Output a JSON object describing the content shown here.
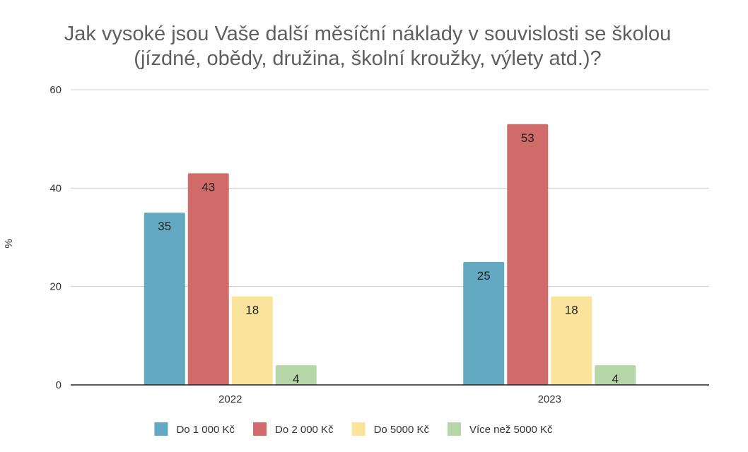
{
  "chart_data": {
    "type": "bar",
    "title_line1": "Jak vysoké jsou Vaše další měsíční náklady v souvislosti se školou",
    "title_line2": "(jízdné, obědy, družina, školní kroužky, výlety atd.)?",
    "xlabel": "",
    "ylabel": "%",
    "ylim": [
      0,
      60
    ],
    "yticks": [
      0,
      20,
      40,
      60
    ],
    "grid": true,
    "legend_position": "bottom",
    "categories": [
      "2022",
      "2023"
    ],
    "series": [
      {
        "name": "Do 1 000 Kč",
        "color": "#63a9c2",
        "values": [
          35,
          25
        ]
      },
      {
        "name": "Do 2 000 Kč",
        "color": "#d06b69",
        "values": [
          43,
          53
        ]
      },
      {
        "name": "Do  5000 Kč",
        "color": "#fae39b",
        "values": [
          18,
          18
        ]
      },
      {
        "name": "Více než 5000 Kč",
        "color": "#b5d6a7",
        "values": [
          4,
          4
        ]
      }
    ]
  }
}
